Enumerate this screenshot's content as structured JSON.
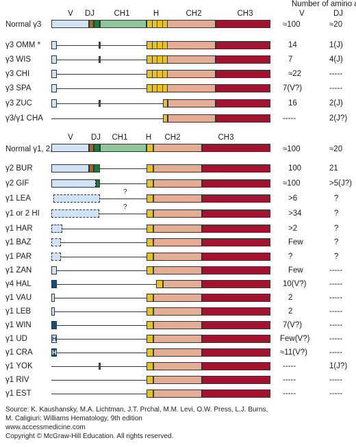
{
  "header": {
    "amino_title": "Number of amino acids",
    "col_v": "V",
    "col_dj": "DJ"
  },
  "section_a": {
    "normal_label": "Normal γ3",
    "domain_labels": [
      "V",
      "DJ",
      "CH1",
      "H",
      "CH2",
      "CH3"
    ],
    "normal_v": "≈100",
    "normal_dj": "≈20"
  },
  "section_b": {
    "normal_label": "Normal γ1, 2, 4",
    "domain_labels": [
      "V",
      "DJ",
      "CH1",
      "H",
      "CH2",
      "CH3"
    ],
    "normal_v": "≈100",
    "normal_dj": "≈20"
  },
  "rows_a": [
    {
      "label": "γ3 OMM *",
      "v": "14",
      "dj": "1(J)"
    },
    {
      "label": "γ3 WIS",
      "v": "7",
      "dj": "4(J)"
    },
    {
      "label": "γ3 CHI",
      "v": "≈22",
      "dj": "-----"
    },
    {
      "label": "γ3 SPA",
      "v": "7(V?)",
      "dj": "-----"
    },
    {
      "label": "γ3 ZUC",
      "v": "16",
      "dj": "2(J)"
    },
    {
      "label": "γ3/γ1 CHA",
      "v": "-----",
      "dj": "2(J?)"
    }
  ],
  "rows_b": [
    {
      "label": "γ2 BUR",
      "v": "100",
      "dj": "21"
    },
    {
      "label": "γ2 GIF",
      "v": "≈100",
      "dj": ">5(J?)"
    },
    {
      "label": "γ1 LEA",
      "v": ">6",
      "dj": "?"
    },
    {
      "label": "γ1 or 2 HI",
      "v": ">34",
      "dj": "?"
    },
    {
      "label": "γ1 HAR",
      "v": ">2",
      "dj": "?"
    },
    {
      "label": "γ1 BAZ",
      "v": "Few",
      "dj": "?"
    },
    {
      "label": "γ1 PAR",
      "v": "?",
      "dj": "?"
    },
    {
      "label": "γ1 ZAN",
      "v": "Few",
      "dj": "-----"
    },
    {
      "label": "γ4 HAL",
      "v": "10(V?)",
      "dj": "-----"
    },
    {
      "label": "γ1 VAU",
      "v": "2",
      "dj": "-----"
    },
    {
      "label": "γ1 LEB",
      "v": "2",
      "dj": "-----"
    },
    {
      "label": "γ1 WIN",
      "v": "7(V?)",
      "dj": "-----"
    },
    {
      "label": "γ1 UD",
      "v": "Few(V?)",
      "dj": "-----"
    },
    {
      "label": "γ1 CRA",
      "v": "≈11(V?)",
      "dj": "-----"
    },
    {
      "label": "γ1 YOK",
      "v": "-----",
      "dj": "1(J?)"
    },
    {
      "label": "γ1 RIV",
      "v": "-----",
      "dj": "-----"
    },
    {
      "label": "γ1 EST",
      "v": "-----",
      "dj": "-----"
    }
  ],
  "question_marks": [
    "?",
    "?"
  ],
  "h_box_letter": "H",
  "footer": {
    "line1": "Source: K. Kaushansky, M.A. Lichtman, J.T. Prchal, M.M. Levi, O.W. Press, L.J. Burns,",
    "line2": "M. Caligiuri: Williams Hematology, 9th edition",
    "line3": "www.accessmedicine.com",
    "line4": "Copyright © McGraw-Hill Education.  All rights reserved."
  },
  "colors": {
    "v_region": "#cfe3f5",
    "dj_brown": "#a06a1a",
    "dj_green": "#1e7a3a",
    "ch1": "#8fc79a",
    "hinge": "#e8c21f",
    "ch2": "#e5ae94",
    "ch3": "#a3122e",
    "dark_blue": "#0f4f80"
  }
}
